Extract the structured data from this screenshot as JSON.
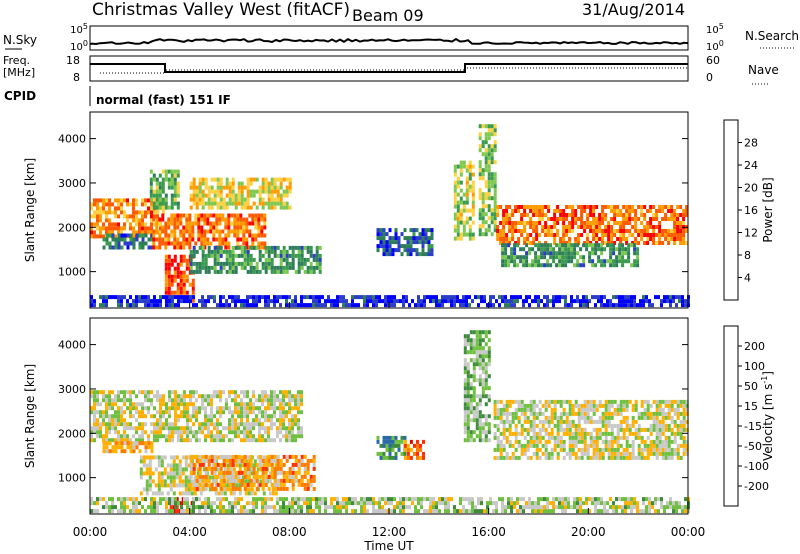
{
  "header": {
    "title": "Christmas Valley West (fitACF)",
    "beam": "Beam 09",
    "date": "31/Aug/2014"
  },
  "strip": {
    "nsky_label": "N.Sky",
    "nsky_ticks": [
      "10^5",
      "10^0"
    ],
    "nsearch_label": "N.Search",
    "nsearch_ticks": [
      "10^5",
      "10^0"
    ],
    "freq_label": "Freq.",
    "freq_unit": "[MHz]",
    "freq_ticks": [
      "18",
      "8"
    ],
    "nave_label": "Nave",
    "nave_ticks": [
      "60",
      "0"
    ],
    "cpid_label": "CPID",
    "cpid_text": "normal (fast) 151 IF"
  },
  "colors": {
    "power": [
      "#0000ff",
      "#2a3ec8",
      "#2e7d5a",
      "#3a9a4e",
      "#7ec850",
      "#ffd040",
      "#ff9a00",
      "#ff5a00",
      "#ff0000"
    ],
    "velocity": [
      "#1a2aa0",
      "#2a6aa8",
      "#3c8c3c",
      "#70c040",
      "#c8c8c8",
      "#ffb000",
      "#ff7a00",
      "#ff3000",
      "#e00000"
    ]
  },
  "chart_data": [
    {
      "type": "heatmap",
      "ylabel": "Slant Range [km]",
      "xlabel": "Time UT",
      "x_ticks": [
        "00:00",
        "04:00",
        "08:00",
        "12:00",
        "16:00",
        "20:00",
        "00:00"
      ],
      "y_ticks": [
        "1000",
        "2000",
        "3000",
        "4000"
      ],
      "ylim": [
        180,
        4600
      ],
      "xlim_hours": [
        0,
        24
      ],
      "colorbar": {
        "label": "Power [dB]",
        "ticks": [
          "28",
          "24",
          "20",
          "16",
          "12",
          "8",
          "4"
        ]
      },
      "regions": [
        {
          "t0": 0.0,
          "t1": 2.9,
          "r0": 1750,
          "r1": 2600,
          "level": 0.75
        },
        {
          "t0": 0.5,
          "t1": 2.5,
          "r0": 1500,
          "r1": 1800,
          "level": 0.25
        },
        {
          "t0": 2.4,
          "t1": 3.5,
          "r0": 2400,
          "r1": 3300,
          "level": 0.45
        },
        {
          "t0": 2.5,
          "t1": 7.0,
          "r0": 1500,
          "r1": 2300,
          "level": 0.8
        },
        {
          "t0": 4.0,
          "t1": 8.0,
          "r0": 2400,
          "r1": 3100,
          "level": 0.6
        },
        {
          "t0": 3.0,
          "t1": 4.2,
          "r0": 300,
          "r1": 1300,
          "level": 0.85
        },
        {
          "t0": 4.0,
          "t1": 9.2,
          "r0": 950,
          "r1": 1550,
          "level": 0.35
        },
        {
          "t0": 11.5,
          "t1": 13.7,
          "r0": 1350,
          "r1": 1900,
          "level": 0.2
        },
        {
          "t0": 14.6,
          "t1": 15.4,
          "r0": 1700,
          "r1": 3500,
          "level": 0.55
        },
        {
          "t0": 15.6,
          "t1": 16.3,
          "r0": 1800,
          "r1": 4300,
          "level": 0.5
        },
        {
          "t0": 16.3,
          "t1": 24.0,
          "r0": 1600,
          "r1": 2500,
          "level": 0.8
        },
        {
          "t0": 16.5,
          "t1": 22.0,
          "r0": 1100,
          "r1": 1600,
          "level": 0.35
        },
        {
          "t0": 0.0,
          "t1": 24.0,
          "r0": 200,
          "r1": 420,
          "level": 0.1
        }
      ]
    },
    {
      "type": "heatmap",
      "ylabel": "Slant Range [km]",
      "xlabel": "Time UT",
      "x_ticks": [
        "00:00",
        "04:00",
        "08:00",
        "12:00",
        "16:00",
        "20:00",
        "00:00"
      ],
      "y_ticks": [
        "1000",
        "2000",
        "3000",
        "4000"
      ],
      "ylim": [
        180,
        4600
      ],
      "xlim_hours": [
        0,
        24
      ],
      "colorbar": {
        "label": "Velocity [m s^-1]",
        "ticks": [
          "200",
          "100",
          "50",
          "15",
          "-15",
          "-50",
          "-100",
          "-200"
        ]
      },
      "regions": [
        {
          "t0": 0.0,
          "t1": 8.5,
          "r0": 1800,
          "r1": 2900,
          "level": 0.5
        },
        {
          "t0": 0.5,
          "t1": 2.5,
          "r0": 1550,
          "r1": 1750,
          "level": 0.62
        },
        {
          "t0": 2.0,
          "t1": 7.5,
          "r0": 600,
          "r1": 1500,
          "level": 0.5
        },
        {
          "t0": 4.0,
          "t1": 9.0,
          "r0": 700,
          "r1": 1500,
          "level": 0.66
        },
        {
          "t0": 3.2,
          "t1": 4.2,
          "r0": 200,
          "r1": 500,
          "level": 0.9
        },
        {
          "t0": 11.5,
          "t1": 12.6,
          "r0": 1400,
          "r1": 1900,
          "level": 0.3
        },
        {
          "t0": 12.6,
          "t1": 13.4,
          "r0": 1400,
          "r1": 1800,
          "level": 0.75
        },
        {
          "t0": 15.0,
          "t1": 16.0,
          "r0": 1800,
          "r1": 4300,
          "level": 0.4
        },
        {
          "t0": 16.2,
          "t1": 24.0,
          "r0": 1400,
          "r1": 2700,
          "level": 0.5
        },
        {
          "t0": 0.0,
          "t1": 24.0,
          "r0": 200,
          "r1": 500,
          "level": 0.45
        }
      ]
    }
  ]
}
